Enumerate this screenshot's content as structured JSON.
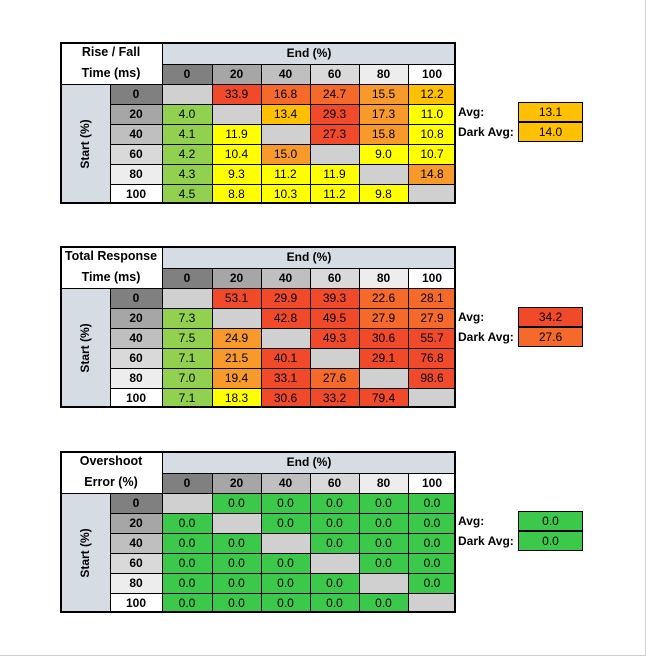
{
  "col_header": "End (%)",
  "row_header": "Start (%)",
  "levels": [
    "0",
    "20",
    "40",
    "60",
    "80",
    "100"
  ],
  "avg_label": "Avg:",
  "dark_avg_label": "Dark Avg:",
  "colors": {
    "header_gray": "#d6dce4",
    "lvl0": "#808080",
    "lvl20": "#a6a6a6",
    "lvl40": "#bfbfbf",
    "lvl60": "#d9d9d9",
    "lvl80": "#ededed",
    "lvl100": "#ffffff",
    "diag": "#d0d0d0",
    "green": "#3cc84b",
    "lime": "#92d050",
    "yellow": "#ffff00",
    "gold": "#ffc000",
    "orange": "#f79a2b",
    "dorange": "#f56a2b",
    "red": "#f04a2b"
  },
  "chart_data": [
    {
      "type": "table",
      "title": [
        "Rise / Fall",
        "Time (ms)"
      ],
      "rows": [
        [
          null,
          "33.9",
          "16.8",
          "24.7",
          "15.5",
          "12.2"
        ],
        [
          "4.0",
          null,
          "13.4",
          "29.3",
          "17.3",
          "11.0"
        ],
        [
          "4.1",
          "11.9",
          null,
          "27.3",
          "15.8",
          "10.8"
        ],
        [
          "4.2",
          "10.4",
          "15.0",
          null,
          "9.0",
          "10.7"
        ],
        [
          "4.3",
          "9.3",
          "11.2",
          "11.9",
          null,
          "14.8"
        ],
        [
          "4.5",
          "8.8",
          "10.3",
          "11.2",
          "9.8",
          null
        ]
      ],
      "cell_colors": [
        [
          "diag",
          "red",
          "dorange",
          "dorange",
          "orange",
          "gold"
        ],
        [
          "lime",
          "diag",
          "gold",
          "red",
          "orange",
          "yellow"
        ],
        [
          "lime",
          "yellow",
          "diag",
          "red",
          "orange",
          "yellow"
        ],
        [
          "lime",
          "yellow",
          "orange",
          "diag",
          "yellow",
          "yellow"
        ],
        [
          "lime",
          "yellow",
          "yellow",
          "yellow",
          "diag",
          "orange"
        ],
        [
          "lime",
          "yellow",
          "yellow",
          "yellow",
          "yellow",
          "diag"
        ]
      ],
      "avg": "13.1",
      "dark_avg": "14.0",
      "avg_color": "gold",
      "dark_avg_color": "gold"
    },
    {
      "type": "table",
      "title": [
        "Total Response",
        "Time (ms)"
      ],
      "rows": [
        [
          null,
          "53.1",
          "29.9",
          "39.3",
          "22.6",
          "28.1"
        ],
        [
          "7.3",
          null,
          "42.8",
          "49.5",
          "27.9",
          "27.9"
        ],
        [
          "7.5",
          "24.9",
          null,
          "49.3",
          "30.6",
          "55.7"
        ],
        [
          "7.1",
          "21.5",
          "40.1",
          null,
          "29.1",
          "76.8"
        ],
        [
          "7.0",
          "19.4",
          "33.1",
          "27.6",
          null,
          "98.6"
        ],
        [
          "7.1",
          "18.3",
          "30.6",
          "33.2",
          "79.4",
          null
        ]
      ],
      "cell_colors": [
        [
          "diag",
          "red",
          "red",
          "red",
          "dorange",
          "dorange"
        ],
        [
          "lime",
          "diag",
          "red",
          "red",
          "dorange",
          "dorange"
        ],
        [
          "lime",
          "orange",
          "diag",
          "red",
          "red",
          "red"
        ],
        [
          "lime",
          "orange",
          "red",
          "diag",
          "red",
          "red"
        ],
        [
          "lime",
          "orange",
          "red",
          "dorange",
          "diag",
          "red"
        ],
        [
          "lime",
          "yellow",
          "red",
          "red",
          "red",
          "diag"
        ]
      ],
      "avg": "34.2",
      "dark_avg": "27.6",
      "avg_color": "red",
      "dark_avg_color": "dorange"
    },
    {
      "type": "table",
      "title": [
        "Overshoot",
        "Error (%)"
      ],
      "rows": [
        [
          null,
          "0.0",
          "0.0",
          "0.0",
          "0.0",
          "0.0"
        ],
        [
          "0.0",
          null,
          "0.0",
          "0.0",
          "0.0",
          "0.0"
        ],
        [
          "0.0",
          "0.0",
          null,
          "0.0",
          "0.0",
          "0.0"
        ],
        [
          "0.0",
          "0.0",
          "0.0",
          null,
          "0.0",
          "0.0"
        ],
        [
          "0.0",
          "0.0",
          "0.0",
          "0.0",
          null,
          "0.0"
        ],
        [
          "0.0",
          "0.0",
          "0.0",
          "0.0",
          "0.0",
          null
        ]
      ],
      "cell_colors": [
        [
          "diag",
          "green",
          "green",
          "green",
          "green",
          "green"
        ],
        [
          "green",
          "diag",
          "green",
          "green",
          "green",
          "green"
        ],
        [
          "green",
          "green",
          "diag",
          "green",
          "green",
          "green"
        ],
        [
          "green",
          "green",
          "green",
          "diag",
          "green",
          "green"
        ],
        [
          "green",
          "green",
          "green",
          "green",
          "diag",
          "green"
        ],
        [
          "green",
          "green",
          "green",
          "green",
          "green",
          "diag"
        ]
      ],
      "avg": "0.0",
      "dark_avg": "0.0",
      "avg_color": "green",
      "dark_avg_color": "green"
    }
  ]
}
